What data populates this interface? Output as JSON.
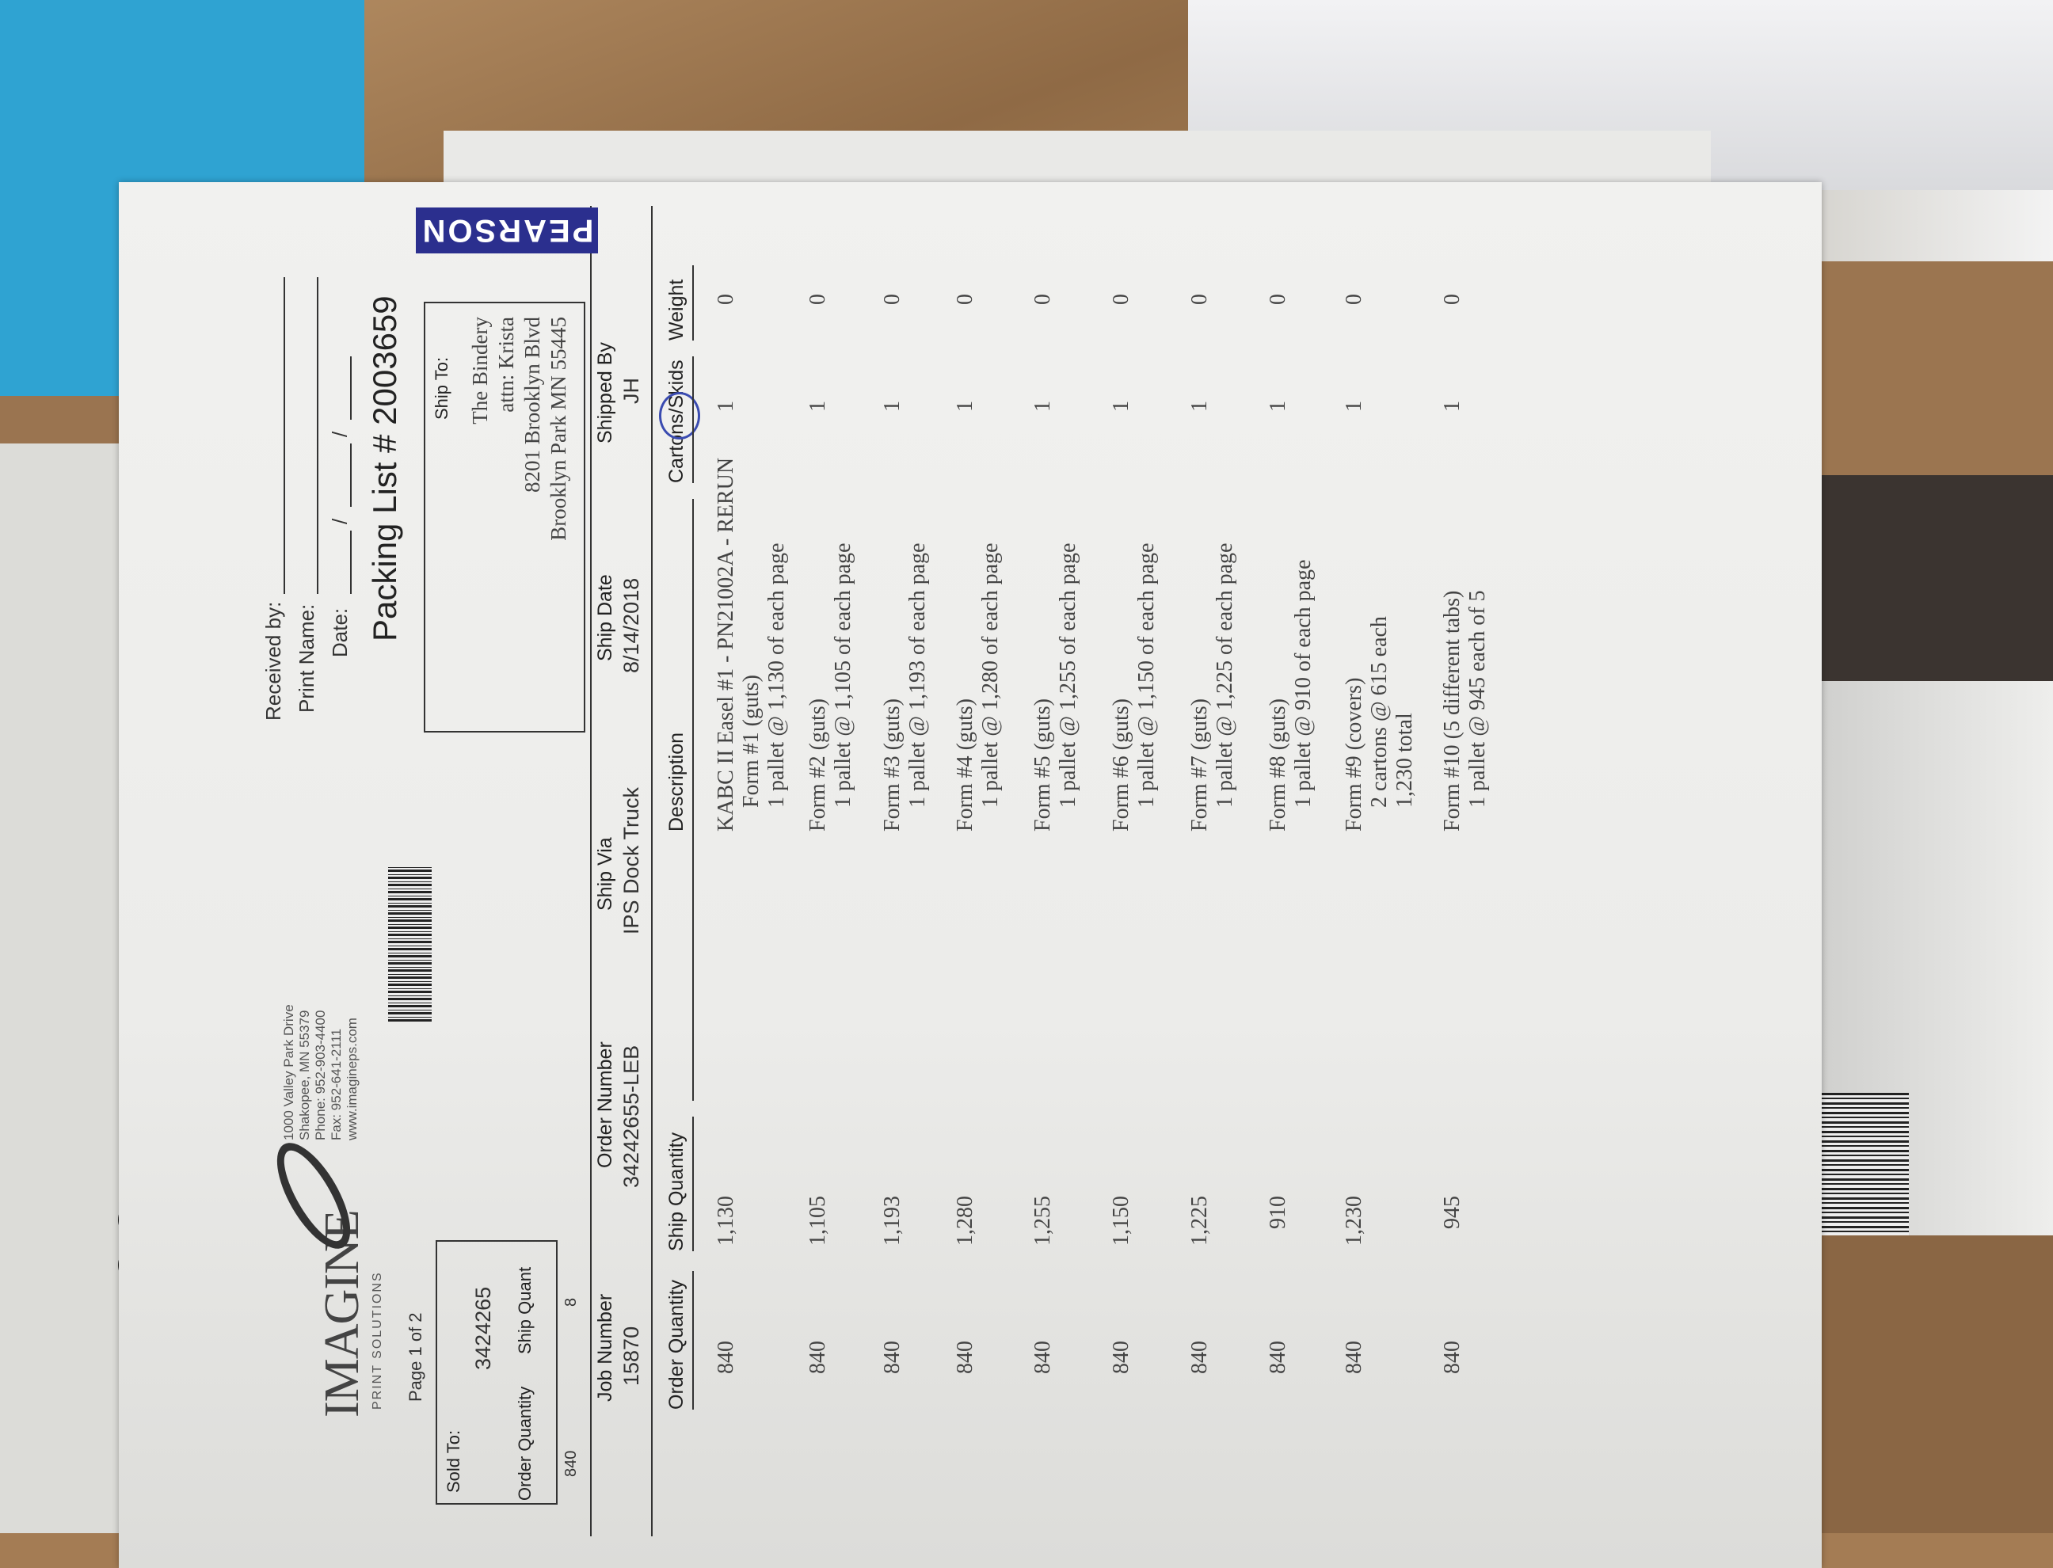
{
  "background": {
    "box_label": "PEARSON",
    "handwritten_mark": "001"
  },
  "company": {
    "logo_text": "IMAGINE",
    "logo_subtext": "PRINT SOLUTIONS",
    "address_lines": [
      "1000 Valley Park Drive",
      "Shakopee, MN 55379",
      "Phone: 952-903-4400",
      "Fax: 952-641-2111",
      "www.imagineps.com"
    ]
  },
  "receipt": {
    "received_by_label": "Received by:",
    "print_name_label": "Print Name:",
    "date_label": "Date:",
    "date_separators": "/",
    "title": "Packing List # 2003659",
    "page": "Page 1 of 2"
  },
  "sold_to": {
    "label": "Sold To:",
    "account": "3424265",
    "order_qty_label": "Order Quantity",
    "ship_qty_label": "Ship Quant",
    "order_qty": "840",
    "ship_qty": "8"
  },
  "ship_to": {
    "label": "Ship To:",
    "lines": [
      "The Bindery",
      "attn: Krista",
      "8201 Brooklyn Blvd",
      "Brooklyn Park MN  55445"
    ]
  },
  "shipment": {
    "fields": [
      {
        "label": "Job Number",
        "value": "15870"
      },
      {
        "label": "Order Number",
        "value": "34242655-LEB"
      },
      {
        "label": "Ship Via",
        "value": "IPS Dock Truck"
      },
      {
        "label": "Ship Date",
        "value": "8/14/2018"
      },
      {
        "label": "Shipped By",
        "value": "JH"
      }
    ]
  },
  "table": {
    "headers": [
      "Order Quantity",
      "Ship Quantity",
      "Description",
      "Cartons/Skids",
      "Weight"
    ],
    "annotation_color": "#3a4bb0",
    "rows": [
      {
        "order_qty": "840",
        "ship_qty": "1,130",
        "desc": [
          "KABC II Easel #1 - PN21002A - RERUN",
          "Form #1 (guts)",
          "1 pallet @ 1,130 of each page"
        ],
        "cartons": "1",
        "weight": "0"
      },
      {
        "order_qty": "840",
        "ship_qty": "1,105",
        "desc": [
          "Form #2 (guts)",
          "1 pallet @ 1,105 of each page"
        ],
        "cartons": "1",
        "weight": "0"
      },
      {
        "order_qty": "840",
        "ship_qty": "1,193",
        "desc": [
          "Form #3 (guts)",
          "1 pallet @ 1,193 of each page"
        ],
        "cartons": "1",
        "weight": "0"
      },
      {
        "order_qty": "840",
        "ship_qty": "1,280",
        "desc": [
          "Form #4 (guts)",
          "1 pallet @ 1,280 of each page"
        ],
        "cartons": "1",
        "weight": "0"
      },
      {
        "order_qty": "840",
        "ship_qty": "1,255",
        "desc": [
          "Form #5 (guts)",
          "1 pallet @ 1,255 of each page"
        ],
        "cartons": "1",
        "weight": "0"
      },
      {
        "order_qty": "840",
        "ship_qty": "1,150",
        "desc": [
          "Form #6 (guts)",
          "1 pallet @ 1,150 of each page"
        ],
        "cartons": "1",
        "weight": "0"
      },
      {
        "order_qty": "840",
        "ship_qty": "1,225",
        "desc": [
          "Form #7 (guts)",
          "1 pallet @ 1,225 of each page"
        ],
        "cartons": "1",
        "weight": "0"
      },
      {
        "order_qty": "840",
        "ship_qty": "910",
        "desc": [
          "Form #8 (guts)",
          "1 pallet @ 910 of each page"
        ],
        "cartons": "1",
        "weight": "0"
      },
      {
        "order_qty": "840",
        "ship_qty": "1,230",
        "desc": [
          "Form #9  (covers)",
          "2 cartons @ 615 each",
          "1,230 total"
        ],
        "cartons": "1",
        "weight": "0"
      },
      {
        "order_qty": "840",
        "ship_qty": "945",
        "desc": [
          "Form #10 (5 different tabs)",
          "1 pallet @ 945 each of 5"
        ],
        "cartons": "1",
        "weight": "0"
      }
    ]
  }
}
